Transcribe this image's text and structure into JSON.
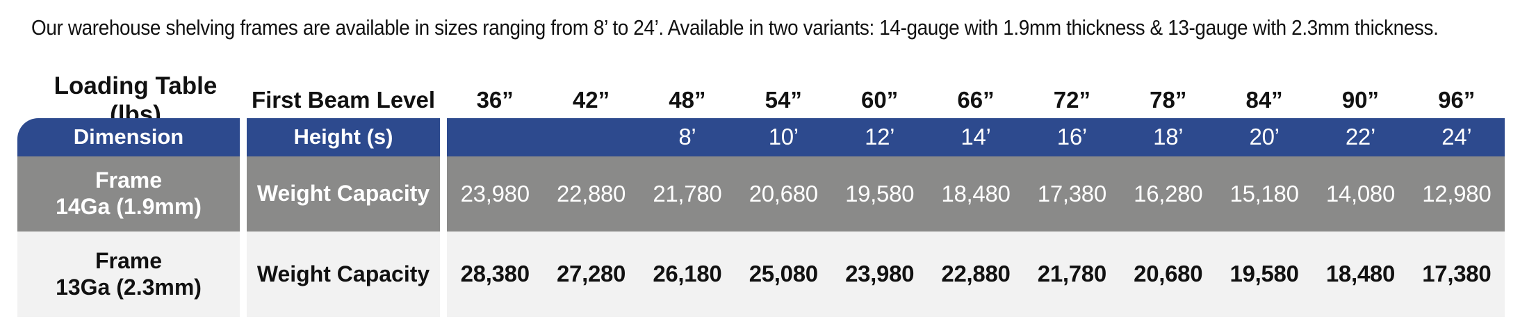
{
  "intro_text": "Our warehouse shelving frames are available in sizes ranging from 8’ to 24’.  Available in two variants: 14-gauge with 1.9mm thickness & 13-gauge with 2.3mm thickness.",
  "table": {
    "title": "Loading Table (lbs)",
    "first_beam_label": "First Beam Level",
    "beam_levels": [
      "36”",
      "42”",
      "48”",
      "54”",
      "60”",
      "66”",
      "72”",
      "78”",
      "84”",
      "90”",
      "96”"
    ],
    "dimension_label": "Dimension",
    "height_label": "Height (s)",
    "heights": [
      "",
      "",
      "8’",
      "10’",
      "12’",
      "14’",
      "16’",
      "18’",
      "20’",
      "22’",
      "24’"
    ],
    "rows": [
      {
        "frame_line1": "Frame",
        "frame_line2": "14Ga (1.9mm)",
        "metric": "Weight Capacity",
        "values": [
          "23,980",
          "22,880",
          "21,780",
          "20,680",
          "19,580",
          "18,480",
          "17,380",
          "16,280",
          "15,180",
          "14,080",
          "12,980"
        ]
      },
      {
        "frame_line1": "Frame",
        "frame_line2": "13Ga (2.3mm)",
        "metric": "Weight Capacity",
        "values": [
          "28,380",
          "27,280",
          "26,180",
          "25,080",
          "23,980",
          "22,880",
          "21,780",
          "20,680",
          "19,580",
          "18,480",
          "17,380"
        ]
      }
    ]
  },
  "colors": {
    "header_blue": "#2d4a8e",
    "row_gray": "#8a8a89",
    "row_light": "#f2f2f2"
  }
}
